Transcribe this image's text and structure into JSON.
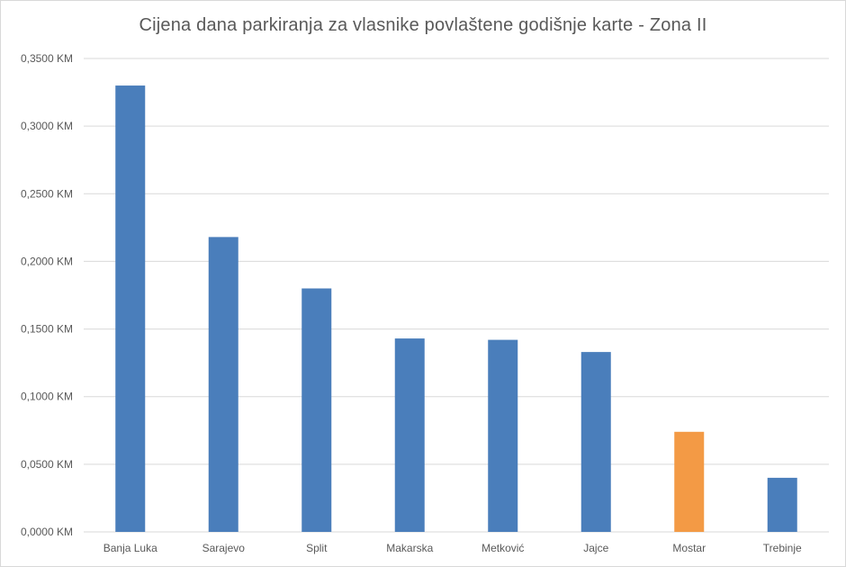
{
  "chart_data": {
    "type": "bar",
    "title": "Cijena dana parkiranja za vlasnike povlaštene godišnje karte - Zona II",
    "xlabel": "",
    "ylabel": "",
    "categories": [
      "Banja Luka",
      "Sarajevo",
      "Split",
      "Makarska",
      "Metković",
      "Jajce",
      "Mostar",
      "Trebinje"
    ],
    "values": [
      0.33,
      0.218,
      0.18,
      0.143,
      0.142,
      0.133,
      0.074,
      0.04
    ],
    "bar_colors": [
      "#4a7ebb",
      "#4a7ebb",
      "#4a7ebb",
      "#4a7ebb",
      "#4a7ebb",
      "#4a7ebb",
      "#f39a45",
      "#4a7ebb"
    ],
    "ylim": [
      0,
      0.35
    ],
    "yticks": [
      {
        "value": 0.0,
        "label": "0,0000 KM"
      },
      {
        "value": 0.05,
        "label": "0,0500 KM"
      },
      {
        "value": 0.1,
        "label": "0,1000 KM"
      },
      {
        "value": 0.15,
        "label": "0,1500 KM"
      },
      {
        "value": 0.2,
        "label": "0,2000 KM"
      },
      {
        "value": 0.25,
        "label": "0,2500 KM"
      },
      {
        "value": 0.3,
        "label": "0,3000 KM"
      },
      {
        "value": 0.35,
        "label": "0,3500 KM"
      }
    ],
    "grid": true,
    "legend": "none",
    "colors": {
      "default_bar": "#4a7ebb",
      "highlight_bar": "#f39a45",
      "gridline": "#d9d9d9",
      "text": "#595959"
    }
  }
}
